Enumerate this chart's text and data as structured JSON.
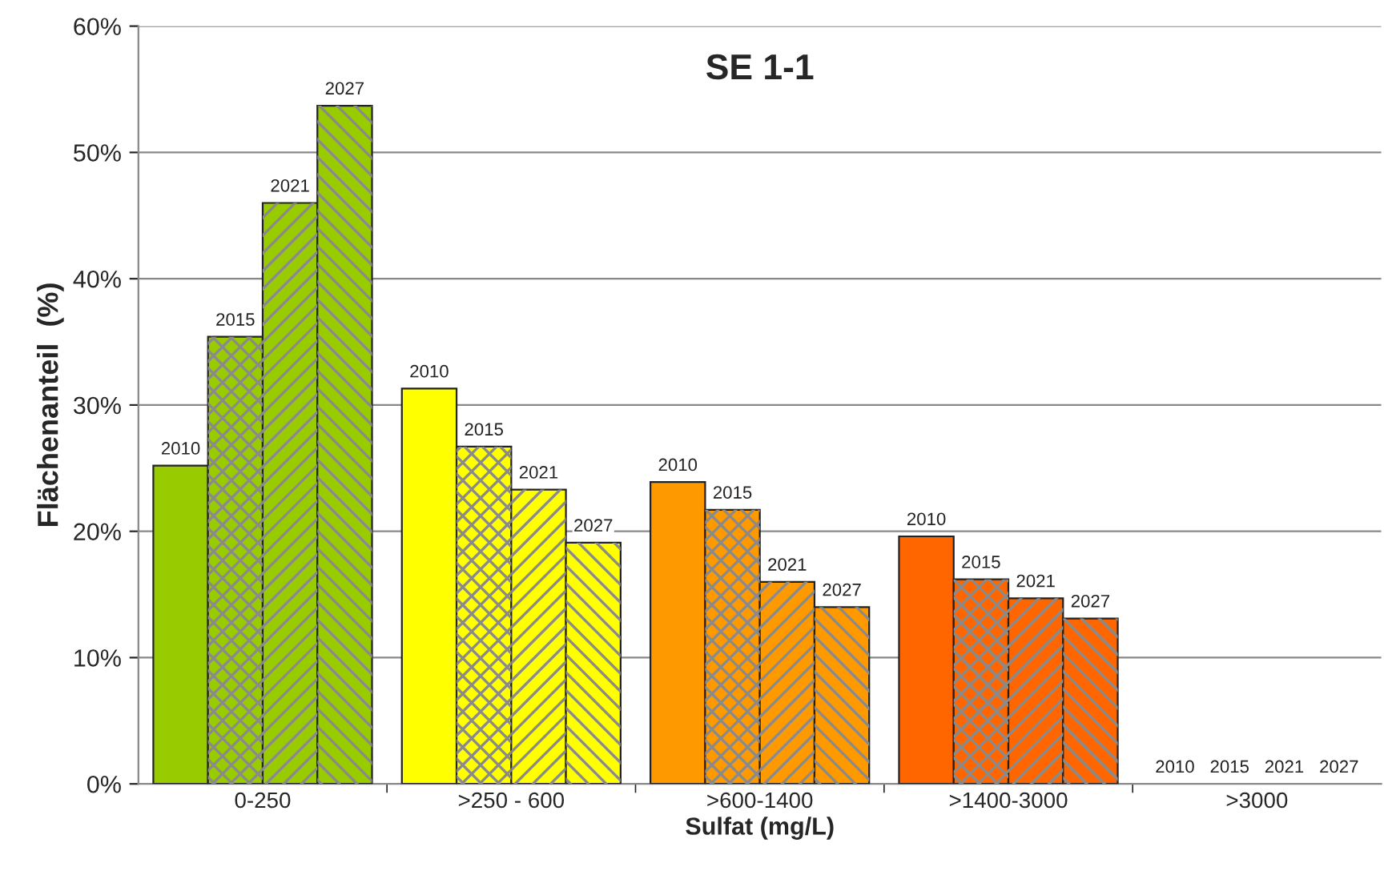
{
  "chart_data": {
    "type": "bar",
    "title": "SE 1-1",
    "xlabel": "Sulfat (mg/L)",
    "ylabel": "Flächenanteil  (%)",
    "categories": [
      "0-250",
      ">250 - 600",
      ">600-1400",
      ">1400-3000",
      ">3000"
    ],
    "series": [
      {
        "name": "2010",
        "colors": [
          "#99cc00",
          "#ffff00",
          "#ff9900",
          "#ff6600",
          "#ff3300"
        ],
        "values": [
          25.2,
          31.3,
          23.9,
          19.6,
          0
        ]
      },
      {
        "name": "2015",
        "colors": [
          "#99cc00",
          "#ffff00",
          "#ff9900",
          "#ff6600",
          "#ff3300"
        ],
        "values": [
          35.4,
          26.7,
          21.7,
          16.2,
          0
        ]
      },
      {
        "name": "2021",
        "colors": [
          "#99cc00",
          "#ffff00",
          "#ff9900",
          "#ff6600",
          "#ff3300"
        ],
        "values": [
          46.0,
          23.3,
          16.0,
          14.7,
          0
        ]
      },
      {
        "name": "2027",
        "colors": [
          "#99cc00",
          "#ffff00",
          "#ff9900",
          "#ff6600",
          "#ff3300"
        ],
        "values": [
          53.7,
          19.1,
          14.0,
          13.1,
          0
        ]
      }
    ],
    "ylim": [
      0,
      60
    ],
    "yticks": [
      {
        "value": 0,
        "label": "0%"
      },
      {
        "value": 10,
        "label": "10%"
      },
      {
        "value": 20,
        "label": "20%"
      },
      {
        "value": 30,
        "label": "30%"
      },
      {
        "value": 40,
        "label": "40%"
      },
      {
        "value": 50,
        "label": "50%"
      },
      {
        "value": 60,
        "label": "60%"
      }
    ],
    "grid": "y",
    "legend": false
  }
}
